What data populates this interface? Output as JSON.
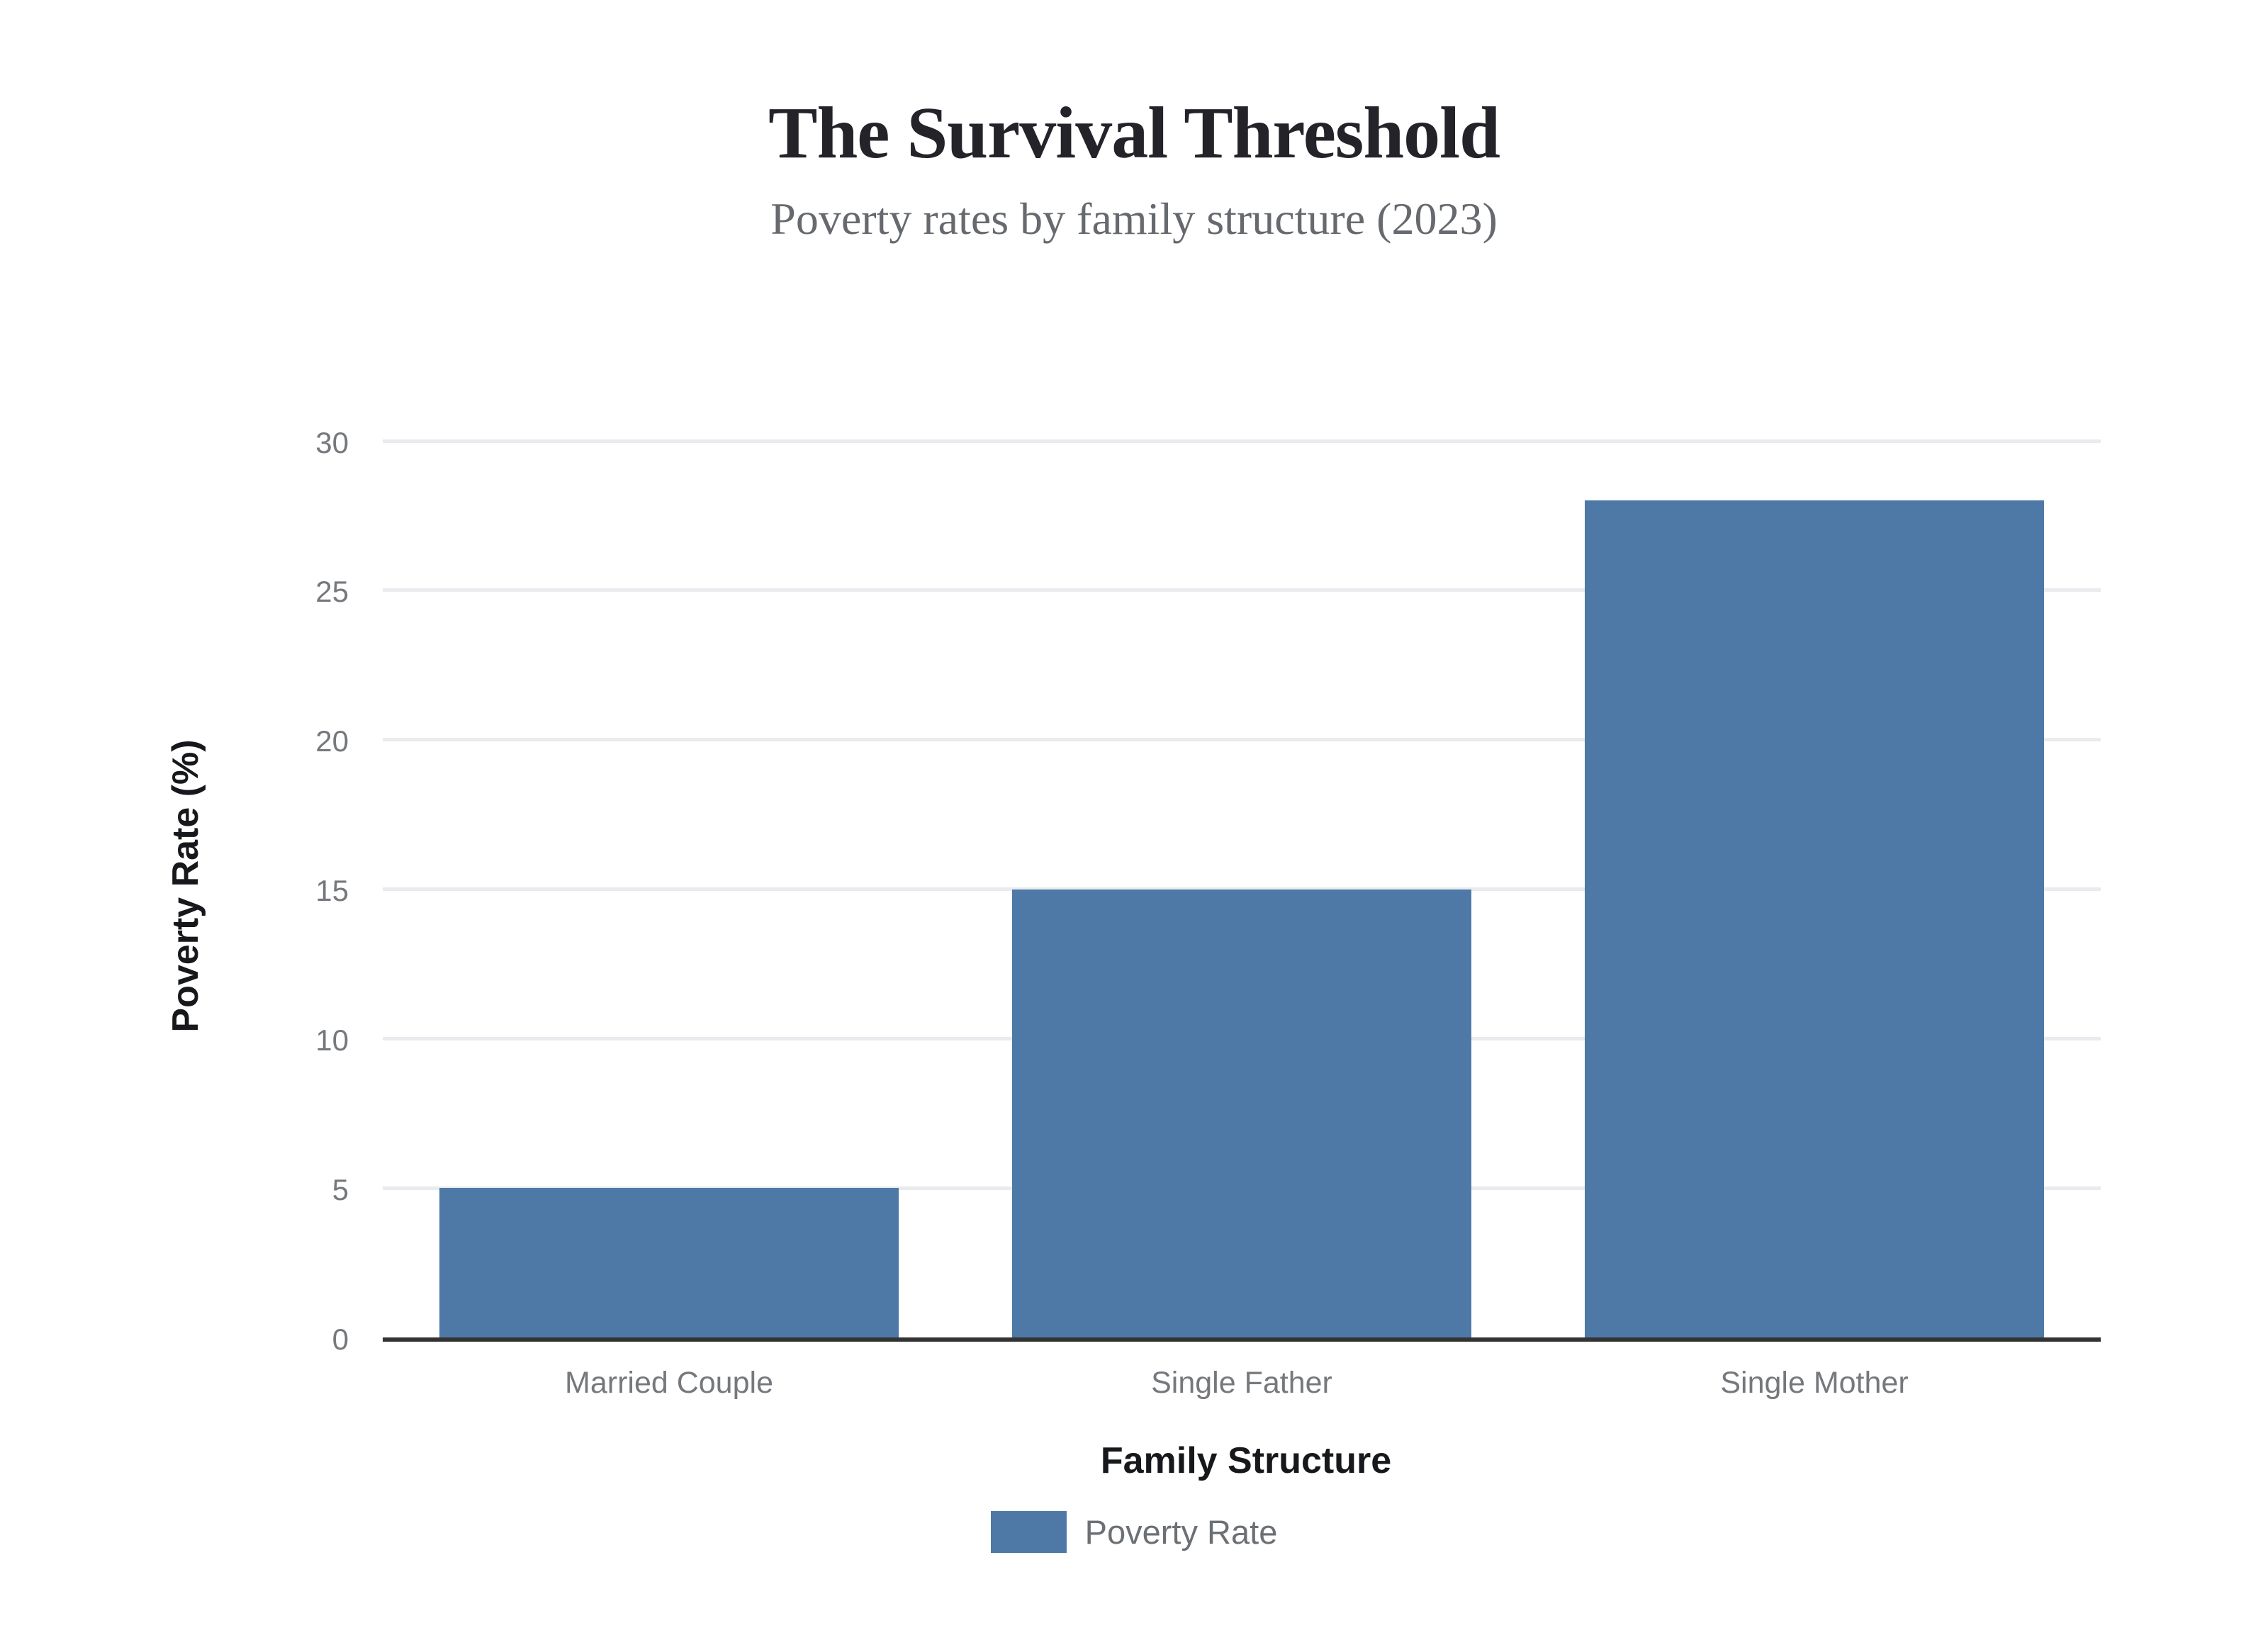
{
  "title": "The Survival Threshold",
  "subtitle": "Poverty rates by family structure (2023)",
  "chart_data": {
    "type": "bar",
    "categories": [
      "Married Couple",
      "Single Father",
      "Single Mother"
    ],
    "values": [
      5,
      15,
      28
    ],
    "series": [
      {
        "name": "Poverty Rate",
        "values": [
          5,
          15,
          28
        ]
      }
    ],
    "title": "The Survival Threshold",
    "subtitle": "Poverty rates by family structure (2023)",
    "xlabel": "Family Structure",
    "ylabel": "Poverty Rate (%)",
    "ylim": [
      0,
      30
    ],
    "yticks": [
      0,
      5,
      10,
      15,
      20,
      25,
      30
    ],
    "grid": true,
    "legend_position": "bottom",
    "bar_color": "#4e79a7"
  },
  "legend": {
    "items": [
      {
        "label": "Poverty Rate",
        "color": "#4e79a7"
      }
    ]
  },
  "colors": {
    "bar": "#4e79a7",
    "gridline": "#e9ebee",
    "axis_line": "#333333",
    "title": "#232329",
    "subtitle": "#66696e",
    "tick_label": "#75787c",
    "axis_title": "#17181b",
    "legend_text": "#6c7074",
    "background": "#ffffff"
  }
}
